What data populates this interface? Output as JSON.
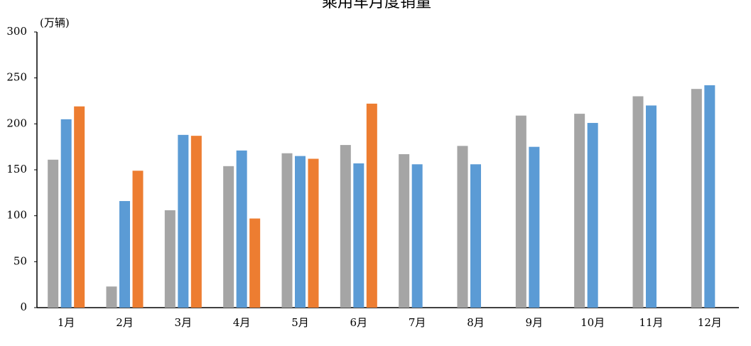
{
  "chart_data": {
    "type": "bar",
    "title": "乘用车月度销量",
    "y_label": "(万辆)",
    "categories": [
      "1月",
      "2月",
      "3月",
      "4月",
      "5月",
      "6月",
      "7月",
      "8月",
      "9月",
      "10月",
      "11月",
      "12月"
    ],
    "series": [
      {
        "color": "#a5a5a5",
        "values": [
          161,
          23,
          106,
          154,
          168,
          177,
          167,
          176,
          209,
          211,
          230,
          238
        ]
      },
      {
        "color": "#5b9bd5",
        "values": [
          205,
          116,
          188,
          171,
          165,
          157,
          156,
          156,
          175,
          201,
          220,
          242
        ]
      },
      {
        "color": "#ed7d31",
        "values": [
          219,
          149,
          187,
          97,
          162,
          222,
          null,
          null,
          null,
          null,
          null,
          null
        ]
      }
    ],
    "ylim": [
      0,
      300
    ],
    "yticks": [
      0,
      50,
      100,
      150,
      200,
      250,
      300
    ],
    "grid": false
  }
}
